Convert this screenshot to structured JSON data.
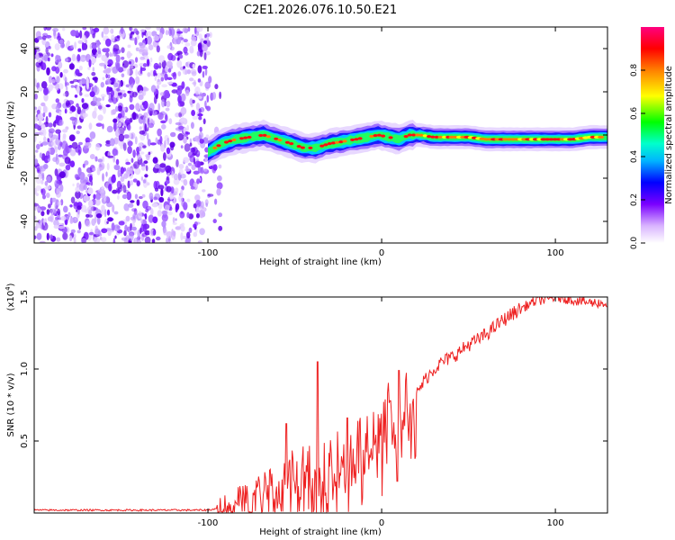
{
  "title": "C2E1.2026.076.10.50.E21",
  "chart_data": [
    {
      "type": "heatmap",
      "title": "C2E1.2026.076.10.50.E21",
      "xlabel": "Height of straight line (km)",
      "ylabel": "Frequency (Hz)",
      "xlim": [
        -200,
        130
      ],
      "ylim": [
        -50,
        50
      ],
      "x_ticks": [
        -100,
        0,
        100
      ],
      "x_tick_labels": [
        "-100",
        "0",
        "100"
      ],
      "y_ticks": [
        -40,
        -20,
        0,
        20,
        40
      ],
      "y_tick_labels": [
        "-40",
        "-20",
        "0",
        "20",
        "40"
      ],
      "colorbar": {
        "label": "Normalized spectral amplitude",
        "range": [
          0.0,
          1.0
        ],
        "ticks": [
          0.0,
          0.2,
          0.4,
          0.6,
          0.8
        ],
        "tick_labels": [
          "0.0",
          "0.2",
          "0.4",
          "0.6",
          "0.8"
        ],
        "colors": [
          "#ffffff",
          "#cfa6ff",
          "#7a00ff",
          "#0000ff",
          "#00ffff",
          "#00ff00",
          "#ffff00",
          "#ff8000",
          "#ff0000",
          "#ff00ff"
        ]
      },
      "noise_region_x": [
        -200,
        -100
      ],
      "ridge_frequency_trace": {
        "x": [
          -100,
          -92,
          -84,
          -76,
          -68,
          -60,
          -52,
          -45,
          -38,
          -30,
          -22,
          -15,
          -8,
          -2,
          4,
          10,
          16,
          22,
          30,
          40,
          50,
          60,
          70,
          80,
          90,
          100,
          110,
          120,
          130
        ],
        "y": [
          -8,
          -4,
          -2,
          -1,
          0,
          -2,
          -4,
          -6,
          -6,
          -4,
          -3,
          -2,
          -1,
          0,
          -1,
          -2,
          0,
          0,
          -1,
          -1,
          -1,
          -2,
          -2,
          -2,
          -2,
          -2,
          -2,
          -1,
          -1
        ]
      }
    },
    {
      "type": "line",
      "title": "",
      "xlabel": "Height of straight line (km)",
      "ylabel": "SNR (10 * v/v)",
      "y_multiplier_label": "(x10",
      "y_multiplier_exponent": "4",
      "y_multiplier_close": ")",
      "xlim": [
        -200,
        130
      ],
      "ylim": [
        0,
        1.5
      ],
      "x_ticks": [
        -100,
        0,
        100
      ],
      "x_tick_labels": [
        "-100",
        "0",
        "100"
      ],
      "y_ticks": [
        0.5,
        1.0,
        1.5
      ],
      "y_tick_labels": [
        "0.5",
        "1.0",
        "1.5"
      ],
      "line_color": "#ee2222",
      "series": [
        {
          "name": "SNR",
          "x": [
            -200,
            -150,
            -100,
            -95,
            -85,
            -75,
            -65,
            -55,
            -45,
            -38,
            -35,
            -30,
            -25,
            -20,
            -15,
            -10,
            -5,
            0,
            5,
            10,
            15,
            20,
            25,
            30,
            35,
            40,
            45,
            50,
            55,
            60,
            65,
            70,
            75,
            80,
            85,
            90,
            95,
            100,
            105,
            110,
            115,
            120,
            125,
            130
          ],
          "y": [
            0.02,
            0.02,
            0.02,
            0.03,
            0.08,
            0.14,
            0.2,
            0.26,
            0.3,
            0.36,
            0.3,
            0.33,
            0.38,
            0.4,
            0.44,
            0.5,
            0.58,
            0.62,
            0.7,
            0.6,
            0.78,
            0.82,
            0.93,
            1.0,
            1.05,
            1.08,
            1.12,
            1.17,
            1.2,
            1.24,
            1.29,
            1.34,
            1.38,
            1.42,
            1.45,
            1.48,
            1.48,
            1.5,
            1.49,
            1.48,
            1.47,
            1.46,
            1.46,
            1.45
          ]
        }
      ],
      "spikes": [
        {
          "x": -37,
          "y": 1.05
        },
        {
          "x": -55,
          "y": 0.62
        },
        {
          "x": -20,
          "y": 0.66
        },
        {
          "x": 5,
          "y": 0.78
        },
        {
          "x": 10,
          "y": 0.99
        },
        {
          "x": 9,
          "y": 0.22
        }
      ]
    }
  ]
}
